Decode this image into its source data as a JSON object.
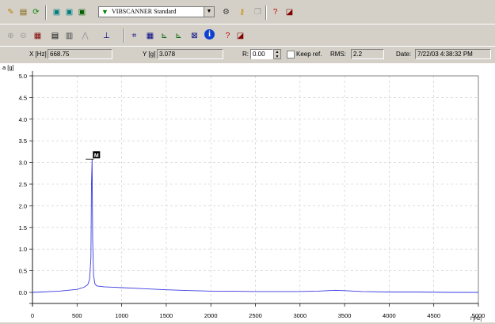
{
  "toolbar": {
    "preset_value": "VIBSCANNER Standard",
    "top_icons": [
      "cursor-icon",
      "open-folder-icon",
      "refresh-icon",
      "monitor-icon",
      "monitor-icon",
      "monitor-icon",
      "gear-icon",
      "key-icon",
      "copy-icon",
      "help-icon",
      "export-icon"
    ],
    "second_icons": [
      "zoom-in-icon",
      "zoom-out-icon",
      "grid-icon",
      "table-icon",
      "table-icon",
      "peak-icon",
      "spectrum-icon",
      "chart-icon",
      "chart-icon",
      "chart-icon",
      "signal-icon",
      "info-icon",
      "help-icon",
      "export-icon"
    ]
  },
  "status": {
    "x_label": "X [Hz]",
    "x_value": "668.75",
    "y_label": "Y [g]",
    "y_value": "3.078",
    "r_label": "R:",
    "r_value": "0.00",
    "keep_ref_label": "Keep ref.",
    "rms_label": "RMS:",
    "rms_value": "2.2",
    "date_label": "Date:",
    "date_value": "7/22/03 4:38:32 PM"
  },
  "chart_data": {
    "type": "line",
    "ylabel": "a [g]",
    "xlabel": "f [Hz]",
    "xlim": [
      0,
      5000
    ],
    "ylim": [
      0,
      5.0
    ],
    "x_ticks": [
      "0",
      "500",
      "1000",
      "1500",
      "2000",
      "2500",
      "3000",
      "3500",
      "4000",
      "4500",
      "5000"
    ],
    "y_ticks": [
      "5.0",
      "4.5",
      "4.0",
      "3.5",
      "3.0",
      "2.5",
      "2.0",
      "1.5",
      "1.0",
      "0.5",
      "0.0"
    ],
    "grid": true,
    "marker": {
      "label": "M",
      "x": 668.75,
      "y": 3.078
    },
    "series": [
      {
        "color": "#3a3ae0",
        "x": [
          0,
          100,
          200,
          300,
          400,
          500,
          580,
          620,
          640,
          655,
          662,
          668.75,
          675,
          685,
          700,
          720,
          800,
          900,
          1000,
          1200,
          1500,
          1800,
          2000,
          2200,
          2500,
          2800,
          3000,
          3200,
          3400,
          3500,
          3700,
          4000,
          4300,
          4700,
          5000
        ],
        "y": [
          0.0,
          0.01,
          0.02,
          0.03,
          0.05,
          0.07,
          0.12,
          0.18,
          0.3,
          0.8,
          2.5,
          3.078,
          1.2,
          0.4,
          0.2,
          0.15,
          0.13,
          0.12,
          0.11,
          0.09,
          0.06,
          0.04,
          0.03,
          0.03,
          0.02,
          0.02,
          0.02,
          0.03,
          0.05,
          0.04,
          0.02,
          0.01,
          0.01,
          0.0,
          0.0
        ]
      }
    ]
  }
}
